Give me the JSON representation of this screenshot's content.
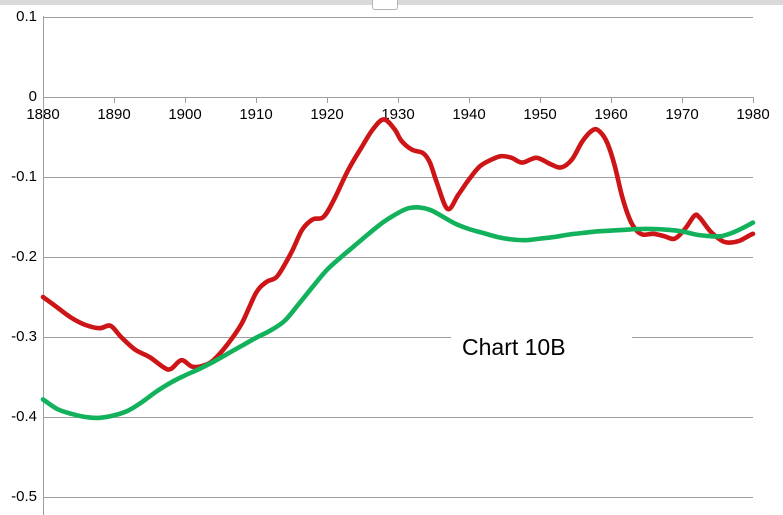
{
  "window": {
    "pane_handle_icon": "pane-resize-handle"
  },
  "colors": {
    "red_series": "#cd1517",
    "green_series": "#12b15c",
    "gridline": "#9f9f9f",
    "label_text": "#000000",
    "top_strip": "#d9d9d9"
  },
  "chart_data": {
    "type": "line",
    "title": "Chart 10B",
    "annotation": {
      "label": "Chart 10B"
    },
    "xlabel": "",
    "ylabel": "",
    "xlim": [
      1880,
      1980
    ],
    "ylim": [
      -0.5,
      0.1
    ],
    "grid": true,
    "legend_position": "none",
    "x_tick_labels": [
      "1880",
      "1890",
      "1900",
      "1910",
      "1920",
      "1930",
      "1940",
      "1950",
      "1960",
      "1970",
      "1980"
    ],
    "y_tick_labels": [
      "0.1",
      "0",
      "-0.1",
      "-0.2",
      "-0.3",
      "-0.4",
      "-0.5"
    ],
    "y_tick_values": [
      0.1,
      0,
      -0.1,
      -0.2,
      -0.3,
      -0.4,
      -0.5
    ],
    "series": [
      {
        "name": "red-series",
        "color": "#cd1517",
        "points": [
          [
            1880,
            -0.25
          ],
          [
            1882,
            -0.263
          ],
          [
            1884,
            -0.276
          ],
          [
            1886,
            -0.285
          ],
          [
            1888,
            -0.289
          ],
          [
            1889.5,
            -0.286
          ],
          [
            1891,
            -0.3
          ],
          [
            1893,
            -0.316
          ],
          [
            1895,
            -0.325
          ],
          [
            1897,
            -0.338
          ],
          [
            1898,
            -0.34
          ],
          [
            1899.5,
            -0.329
          ],
          [
            1901,
            -0.337
          ],
          [
            1902.5,
            -0.336
          ],
          [
            1904,
            -0.329
          ],
          [
            1906,
            -0.309
          ],
          [
            1908,
            -0.283
          ],
          [
            1910,
            -0.245
          ],
          [
            1911.5,
            -0.231
          ],
          [
            1913,
            -0.224
          ],
          [
            1915,
            -0.194
          ],
          [
            1916.5,
            -0.166
          ],
          [
            1918,
            -0.153
          ],
          [
            1919.5,
            -0.15
          ],
          [
            1921,
            -0.128
          ],
          [
            1923,
            -0.091
          ],
          [
            1925,
            -0.061
          ],
          [
            1926.5,
            -0.04
          ],
          [
            1928,
            -0.028
          ],
          [
            1929.5,
            -0.04
          ],
          [
            1930.5,
            -0.055
          ],
          [
            1932,
            -0.066
          ],
          [
            1933.5,
            -0.07
          ],
          [
            1934.5,
            -0.082
          ],
          [
            1935.5,
            -0.108
          ],
          [
            1937,
            -0.14
          ],
          [
            1938.5,
            -0.122
          ],
          [
            1940,
            -0.103
          ],
          [
            1941.5,
            -0.087
          ],
          [
            1943,
            -0.079
          ],
          [
            1944.5,
            -0.074
          ],
          [
            1946,
            -0.076
          ],
          [
            1947.5,
            -0.082
          ],
          [
            1949.5,
            -0.076
          ],
          [
            1951.5,
            -0.084
          ],
          [
            1953,
            -0.088
          ],
          [
            1954.5,
            -0.078
          ],
          [
            1956,
            -0.055
          ],
          [
            1957.5,
            -0.041
          ],
          [
            1958.5,
            -0.044
          ],
          [
            1959.5,
            -0.058
          ],
          [
            1960.5,
            -0.085
          ],
          [
            1961.5,
            -0.122
          ],
          [
            1962.5,
            -0.15
          ],
          [
            1963.5,
            -0.166
          ],
          [
            1964.5,
            -0.172
          ],
          [
            1966,
            -0.171
          ],
          [
            1967.5,
            -0.174
          ],
          [
            1969,
            -0.177
          ],
          [
            1970.5,
            -0.164
          ],
          [
            1971.8,
            -0.148
          ],
          [
            1972.5,
            -0.151
          ],
          [
            1974,
            -0.168
          ],
          [
            1975.5,
            -0.179
          ],
          [
            1976.5,
            -0.182
          ],
          [
            1978,
            -0.18
          ],
          [
            1979.5,
            -0.173
          ],
          [
            1980,
            -0.171
          ]
        ]
      },
      {
        "name": "green-series",
        "color": "#12b15c",
        "points": [
          [
            1880,
            -0.378
          ],
          [
            1882,
            -0.39
          ],
          [
            1884,
            -0.396
          ],
          [
            1886,
            -0.4
          ],
          [
            1888,
            -0.401
          ],
          [
            1890,
            -0.398
          ],
          [
            1892,
            -0.392
          ],
          [
            1894,
            -0.381
          ],
          [
            1896,
            -0.368
          ],
          [
            1898,
            -0.357
          ],
          [
            1900,
            -0.348
          ],
          [
            1902,
            -0.34
          ],
          [
            1904,
            -0.331
          ],
          [
            1906,
            -0.321
          ],
          [
            1908,
            -0.311
          ],
          [
            1910,
            -0.301
          ],
          [
            1912,
            -0.292
          ],
          [
            1914,
            -0.28
          ],
          [
            1916,
            -0.259
          ],
          [
            1918,
            -0.237
          ],
          [
            1920,
            -0.216
          ],
          [
            1922,
            -0.2
          ],
          [
            1924,
            -0.185
          ],
          [
            1926,
            -0.17
          ],
          [
            1928,
            -0.156
          ],
          [
            1930,
            -0.145
          ],
          [
            1931.5,
            -0.139
          ],
          [
            1933,
            -0.138
          ],
          [
            1934.5,
            -0.141
          ],
          [
            1936,
            -0.148
          ],
          [
            1938,
            -0.158
          ],
          [
            1940,
            -0.165
          ],
          [
            1942,
            -0.17
          ],
          [
            1944,
            -0.175
          ],
          [
            1946,
            -0.178
          ],
          [
            1948,
            -0.179
          ],
          [
            1950,
            -0.177
          ],
          [
            1952,
            -0.175
          ],
          [
            1954,
            -0.172
          ],
          [
            1956,
            -0.17
          ],
          [
            1958,
            -0.168
          ],
          [
            1960,
            -0.167
          ],
          [
            1962,
            -0.166
          ],
          [
            1964,
            -0.165
          ],
          [
            1966,
            -0.165
          ],
          [
            1968,
            -0.166
          ],
          [
            1970,
            -0.168
          ],
          [
            1972,
            -0.172
          ],
          [
            1974,
            -0.174
          ],
          [
            1975.5,
            -0.174
          ],
          [
            1977,
            -0.17
          ],
          [
            1978.5,
            -0.164
          ],
          [
            1980,
            -0.157
          ]
        ]
      }
    ]
  }
}
